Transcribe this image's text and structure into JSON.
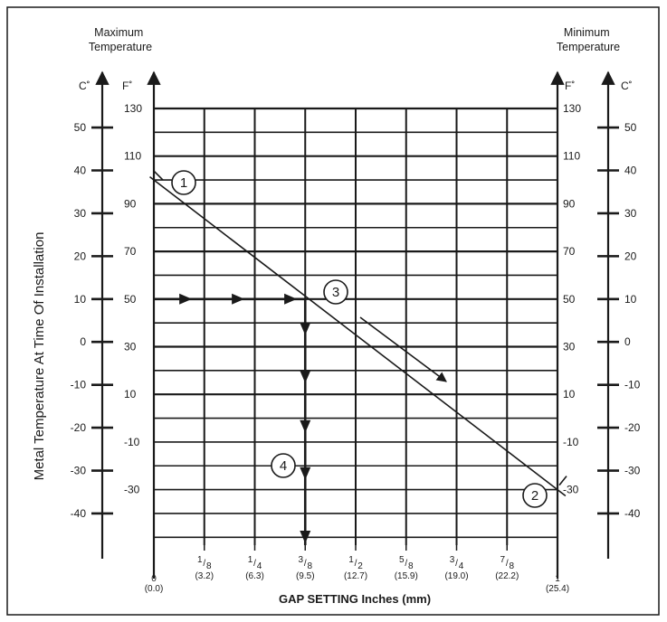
{
  "chart_data": {
    "type": "line",
    "left_header": "Maximum\nTemperature",
    "right_header": "Minimum\nTemperature",
    "y_title": "Metal Temperature At Time Of Installation",
    "x_title": "GAP SETTING Inches (mm)",
    "unit_c": "C˚",
    "unit_f": "F˚",
    "f_ticks": [
      "130",
      "110",
      "90",
      "70",
      "50",
      "30",
      "10",
      "-10",
      "-30"
    ],
    "c_ticks": [
      "50",
      "40",
      "30",
      "20",
      "10",
      "0",
      "-10",
      "-20",
      "-30",
      "-40"
    ],
    "x_ticks": [
      {
        "num": "0",
        "den": "",
        "mm": "(0.0)"
      },
      {
        "num": "1",
        "den": "8",
        "mm": "(3.2)"
      },
      {
        "num": "1",
        "den": "4",
        "mm": "(6.3)"
      },
      {
        "num": "3",
        "den": "8",
        "mm": "(9.5)"
      },
      {
        "num": "1",
        "den": "2",
        "mm": "(12.7)"
      },
      {
        "num": "5",
        "den": "8",
        "mm": "(15.9)"
      },
      {
        "num": "3",
        "den": "4",
        "mm": "(19.0)"
      },
      {
        "num": "7",
        "den": "8",
        "mm": "(22.2)"
      },
      {
        "num": "1",
        "den": "",
        "mm": "(25.4)"
      }
    ],
    "x_range_in": [
      0,
      1
    ],
    "f_range": [
      -50,
      140
    ],
    "series": [
      {
        "x": [
          0,
          1
        ],
        "y_f": [
          100,
          -30
        ]
      }
    ],
    "example": {
      "temp_f": 50,
      "gap_in": 0.375
    },
    "callouts": [
      "1",
      "2",
      "3",
      "4"
    ],
    "grid": true
  }
}
